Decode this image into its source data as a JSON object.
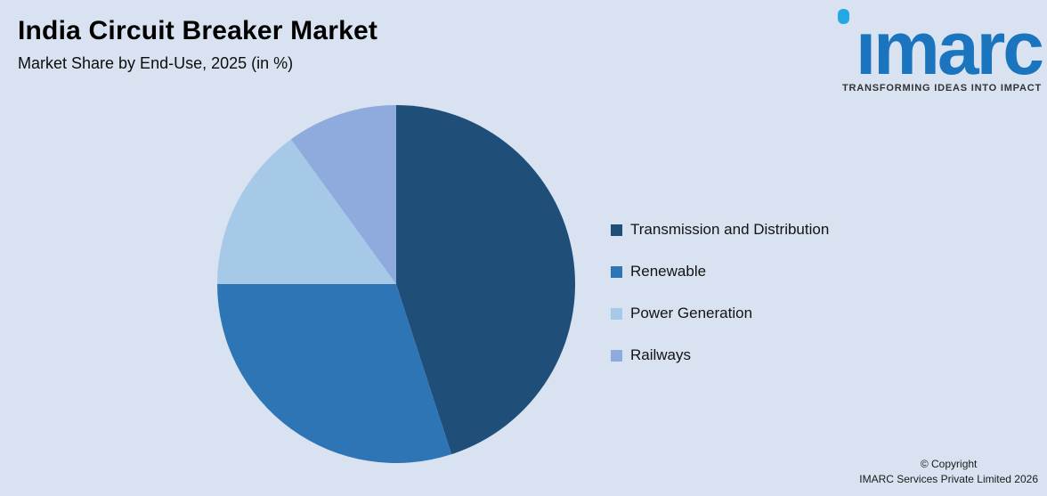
{
  "header": {
    "title": "India Circuit Breaker Market",
    "subtitle": "Market Share by End-Use, 2025 (in %)"
  },
  "logo": {
    "brand": "imarc",
    "tagline": "TRANSFORMING IDEAS INTO IMPACT",
    "brand_color": "#1b74be",
    "dot_color": "#23a9e1"
  },
  "footer": {
    "line1": "© Copyright",
    "line2": "IMARC Services Private Limited 2026"
  },
  "chart_data": {
    "type": "pie",
    "title": "India Circuit Breaker Market",
    "subtitle": "Market Share by End-Use, 2025 (in %)",
    "unit": "%",
    "start_angle_deg": 0,
    "direction": "clockwise",
    "legend_position": "right",
    "categories": [
      "Transmission and Distribution",
      "Renewable",
      "Power Generation",
      "Railways"
    ],
    "values": [
      45,
      30,
      15,
      10
    ],
    "colors": [
      "#1f4e79",
      "#2e75b6",
      "#a6c9e8",
      "#8faadc"
    ]
  }
}
